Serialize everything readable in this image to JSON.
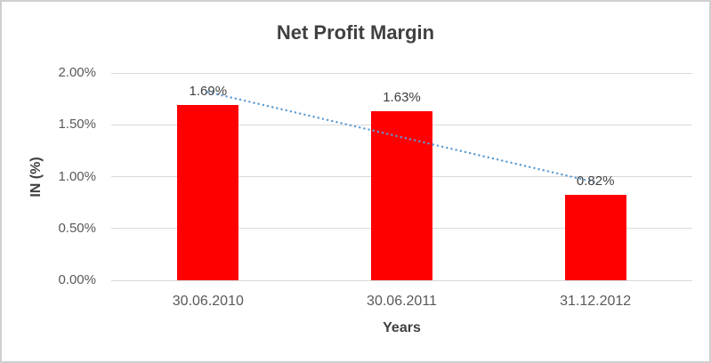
{
  "chart_data": {
    "type": "bar",
    "title": "Net Profit Margin",
    "xlabel": "Years",
    "ylabel": "IN (%)",
    "categories": [
      "30.06.2010",
      "30.06.2011",
      "31.12.2012"
    ],
    "values": [
      1.69,
      1.63,
      0.82
    ],
    "data_labels": [
      "1.69%",
      "1.63%",
      "0.82%"
    ],
    "ylim": [
      0,
      2.0
    ],
    "ytick_values": [
      2.0,
      1.5,
      1.0,
      0.5,
      0.0
    ],
    "ytick_labels": [
      "2.00%",
      "1.50%",
      "1.00%",
      "0.50%",
      "0.00%"
    ],
    "grid": true,
    "legend": "none",
    "bar_color": "#FF0000",
    "gridline_color": "#D9D9D9",
    "title_color": "#404040",
    "tick_color": "#595959",
    "trendline": {
      "type": "linear",
      "style": "dotted",
      "color": "#5B9BD5",
      "start_value": 1.815,
      "end_value": 0.945
    }
  }
}
